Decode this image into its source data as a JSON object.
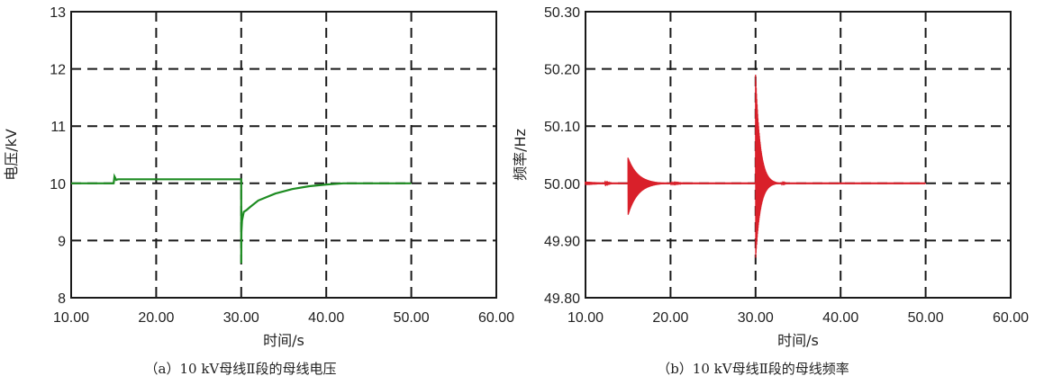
{
  "chart_data": [
    {
      "type": "line",
      "caption": "（a）10 kV母线Ⅱ段的母线电压",
      "xlabel": "时间/s",
      "ylabel": "电压/kV",
      "xlim": [
        10,
        60
      ],
      "ylim": [
        8,
        13
      ],
      "xticks": [
        "10.00",
        "20.00",
        "30.00",
        "40.00",
        "50.00",
        "60.00"
      ],
      "yticks": [
        "8",
        "9",
        "10",
        "11",
        "12",
        "13"
      ],
      "grid": true,
      "color": "#1e8c22",
      "series": [
        {
          "x": [
            10,
            15.0,
            15.1,
            15.3,
            15.5,
            15.9,
            30.0,
            30.0,
            30.02,
            30.1,
            30.3,
            30.6,
            31,
            32,
            34,
            36,
            38,
            40,
            42,
            44,
            46,
            50
          ],
          "y": [
            10.0,
            10.0,
            10.12,
            10.06,
            10.07,
            10.07,
            10.07,
            8.6,
            9.15,
            9.35,
            9.5,
            9.53,
            9.58,
            9.7,
            9.82,
            9.9,
            9.95,
            9.98,
            10.0,
            10.0,
            10.0,
            10.0
          ]
        }
      ]
    },
    {
      "type": "line",
      "caption": "（b）10 kV母线Ⅱ段的母线频率",
      "xlabel": "时间/s",
      "ylabel": "频率/Hz",
      "xlim": [
        10,
        60
      ],
      "ylim": [
        49.8,
        50.3
      ],
      "xticks": [
        "10.00",
        "20.00",
        "30.00",
        "40.00",
        "50.00",
        "60.00"
      ],
      "yticks": [
        "49.80",
        "49.90",
        "50.00",
        "50.10",
        "50.20",
        "50.30"
      ],
      "grid": true,
      "color": "#d9202a",
      "series": [
        {
          "baseline": 50.0,
          "disturbances": [
            {
              "t": 15.0,
              "upper": 50.045,
              "lower": 49.945,
              "decay": 2.5
            },
            {
              "t": 30.0,
              "upper": 50.19,
              "lower": 49.87,
              "decay": 1.2
            }
          ],
          "x_end": 50
        }
      ]
    }
  ]
}
